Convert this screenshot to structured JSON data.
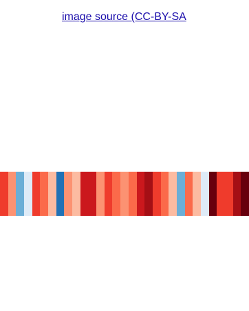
{
  "link": {
    "text": "image source (CC-BY-SA"
  },
  "stripes": {
    "colors": [
      "#ef3b2c",
      "#fc9272",
      "#6baed6",
      "#deebf7",
      "#ef3b2c",
      "#fb6a4a",
      "#fcbba1",
      "#2171b5",
      "#fc9272",
      "#fcbba1",
      "#cb181d",
      "#cb181d",
      "#fc9272",
      "#ef3b2c",
      "#fb6a4a",
      "#fc9272",
      "#fb6a4a",
      "#cb181d",
      "#a50f15",
      "#ef3b2c",
      "#fb6a4a",
      "#fcbba1",
      "#6baed6",
      "#fb6a4a",
      "#fcbba1",
      "#deebf7",
      "#67000d",
      "#ef3b2c",
      "#ef3b2c",
      "#a50f15",
      "#67000d"
    ]
  }
}
